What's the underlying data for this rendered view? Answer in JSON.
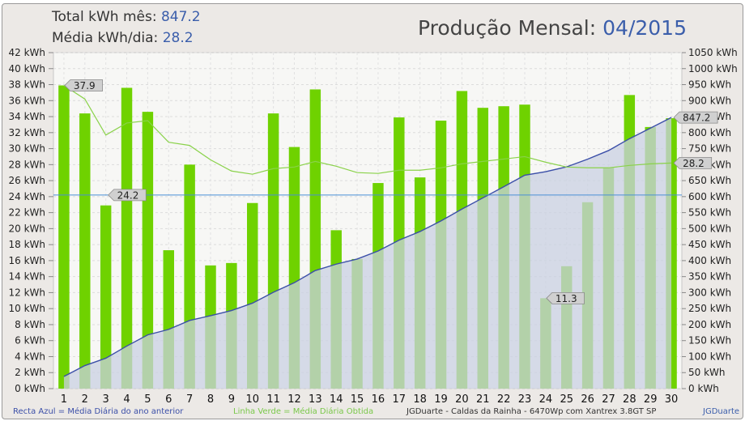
{
  "header": {
    "total_label": "Total kWh mês:",
    "total_value": "847.2",
    "avg_label": "Média kWh/dia:",
    "avg_value": "28.2",
    "title_label": "Produção Mensal:",
    "title_value": "04/2015"
  },
  "colors": {
    "bars": "#6fd200",
    "cumulative_line": "#3b4fa8",
    "cumulative_fill": "#c9d0e2",
    "average_line": "#8ad24a",
    "prev_year_line": "#4a8fd6",
    "accent_text": "#3b5eab"
  },
  "footer": {
    "left": "Recta Azul = Média Diária do ano anterior",
    "middle": "Linha Verde = Média Diária Obtida",
    "right": "JGDuarte  -  Caldas da Rainha  -  6470Wp com Xantrex 3.8GT SP",
    "credit": "JGDuarte"
  },
  "chart_data": {
    "type": "bar",
    "grid": true,
    "x": [
      1,
      2,
      3,
      4,
      5,
      6,
      7,
      8,
      9,
      10,
      11,
      12,
      13,
      14,
      15,
      16,
      17,
      18,
      19,
      20,
      21,
      22,
      23,
      24,
      25,
      26,
      27,
      28,
      29,
      30
    ],
    "xlim": [
      1,
      30
    ],
    "y_left": {
      "ylim": [
        0,
        42
      ],
      "ticks": [
        "0 kWh",
        "2 kWh",
        "4 kWh",
        "6 kWh",
        "8 kWh",
        "10 kWh",
        "12 kWh",
        "14 kWh",
        "16 kWh",
        "18 kWh",
        "20 kWh",
        "22 kWh",
        "24 kWh",
        "26 kWh",
        "28 kWh",
        "30 kWh",
        "32 kWh",
        "34 kWh",
        "36 kWh",
        "38 kWh",
        "40 kWh",
        "42 kWh"
      ]
    },
    "y_right": {
      "ylim": [
        0,
        1050
      ],
      "ticks": [
        "0 kWh",
        "50 kWh",
        "100 kWh",
        "150 kWh",
        "200 kWh",
        "250 kWh",
        "300 kWh",
        "350 kWh",
        "400 kWh",
        "450 kWh",
        "500 kWh",
        "550 kWh",
        "600 kWh",
        "650 kWh",
        "700 kWh",
        "750 kWh",
        "800 kWh",
        "850 kWh",
        "900 kWh",
        "950 kWh",
        "1000 kWh",
        "1050 kWh"
      ]
    },
    "series": [
      {
        "type": "bar",
        "axis": "left",
        "values": [
          37.9,
          34.4,
          22.9,
          37.6,
          34.6,
          17.3,
          28.0,
          15.4,
          15.7,
          23.2,
          34.4,
          30.2,
          37.4,
          19.8,
          16.2,
          25.7,
          33.9,
          26.4,
          33.5,
          37.2,
          35.1,
          35.3,
          35.5,
          11.3,
          15.3,
          23.3,
          27.6,
          36.7,
          32.7,
          33.8
        ]
      },
      {
        "type": "area",
        "axis": "right",
        "values": [
          38,
          72,
          95,
          133,
          168,
          185,
          213,
          228,
          244,
          267,
          301,
          331,
          369,
          389,
          405,
          430,
          464,
          491,
          524,
          561,
          596,
          631,
          667,
          678,
          693,
          717,
          744,
          781,
          814,
          847.2
        ]
      },
      {
        "type": "line",
        "axis": "left",
        "values": [
          37.9,
          36.2,
          31.7,
          33.2,
          33.5,
          30.8,
          30.4,
          28.6,
          27.2,
          26.8,
          27.5,
          27.7,
          28.4,
          27.8,
          27.0,
          26.9,
          27.3,
          27.3,
          27.6,
          28.1,
          28.4,
          28.7,
          29.0,
          28.3,
          27.7,
          27.6,
          27.6,
          27.9,
          28.1,
          28.2
        ]
      },
      {
        "type": "hline",
        "axis": "left",
        "value": 24.2
      }
    ],
    "annotations": [
      "37.9",
      "24.2",
      "11.3",
      "847.2",
      "28.2"
    ]
  }
}
